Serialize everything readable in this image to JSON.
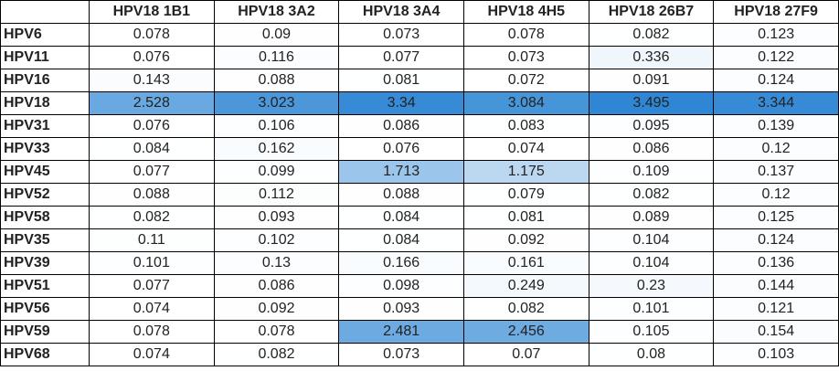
{
  "chart_data": {
    "type": "heatmap",
    "columns": [
      "HPV18 1B1",
      "HPV18 3A2",
      "HPV18 3A4",
      "HPV18 4H5",
      "HPV18 26B7",
      "HPV18 27F9"
    ],
    "rows": [
      "HPV6",
      "HPV11",
      "HPV16",
      "HPV18",
      "HPV31",
      "HPV33",
      "HPV45",
      "HPV52",
      "HPV58",
      "HPV35",
      "HPV39",
      "HPV51",
      "HPV56",
      "HPV59",
      "HPV68"
    ],
    "values": [
      [
        0.078,
        0.09,
        0.073,
        0.078,
        0.082,
        0.123
      ],
      [
        0.076,
        0.116,
        0.077,
        0.073,
        0.336,
        0.122
      ],
      [
        0.143,
        0.088,
        0.081,
        0.072,
        0.091,
        0.124
      ],
      [
        2.528,
        3.023,
        3.34,
        3.084,
        3.495,
        3.344
      ],
      [
        0.076,
        0.106,
        0.086,
        0.083,
        0.095,
        0.139
      ],
      [
        0.084,
        0.162,
        0.076,
        0.074,
        0.086,
        0.12
      ],
      [
        0.077,
        0.099,
        1.713,
        1.175,
        0.109,
        0.137
      ],
      [
        0.088,
        0.112,
        0.088,
        0.079,
        0.082,
        0.12
      ],
      [
        0.082,
        0.093,
        0.084,
        0.081,
        0.089,
        0.125
      ],
      [
        0.11,
        0.102,
        0.084,
        0.092,
        0.104,
        0.124
      ],
      [
        0.101,
        0.13,
        0.166,
        0.161,
        0.104,
        0.136
      ],
      [
        0.077,
        0.086,
        0.098,
        0.249,
        0.23,
        0.144
      ],
      [
        0.074,
        0.092,
        0.093,
        0.082,
        0.101,
        0.121
      ],
      [
        0.078,
        0.078,
        2.481,
        2.456,
        0.105,
        0.154
      ],
      [
        0.074,
        0.082,
        0.073,
        0.07,
        0.08,
        0.103
      ]
    ],
    "color_scale": {
      "low": "#ffffff",
      "high": "#2e86d4",
      "min": 0.07,
      "max": 3.495
    }
  }
}
